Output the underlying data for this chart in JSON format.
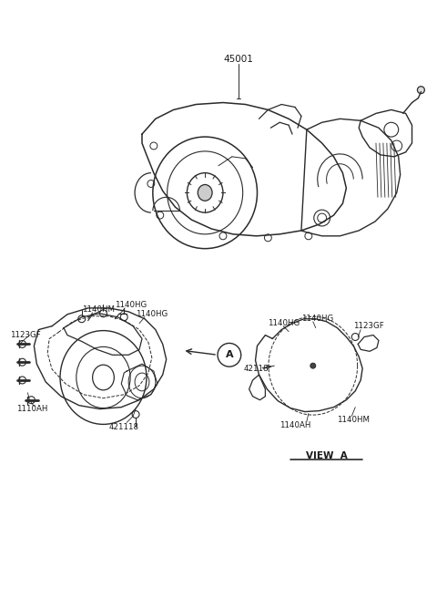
{
  "bg_color": "#ffffff",
  "line_color": "#2a2a2a",
  "text_color": "#1a1a1a",
  "labels": {
    "top_part_number": "45001",
    "lbl_1140HM_left": "1140HM",
    "lbl_1140HG_left1": "1140HG",
    "lbl_1140HG_left2": "1140HG",
    "lbl_1123GF_left": "1123GF",
    "lbl_1110AH": "1110AH",
    "lbl_421118": "421118",
    "lbl_1140HG_right1": "1140HG",
    "lbl_1140HG_right2": "1140HG",
    "lbl_1123GF_right": "1123GF",
    "lbl_42118": "42118",
    "lbl_1140AH_right": "1140AH",
    "lbl_1140HM_right": "1140HM",
    "view_label": "VIEW  A"
  },
  "figsize": [
    4.8,
    6.57
  ],
  "dpi": 100
}
